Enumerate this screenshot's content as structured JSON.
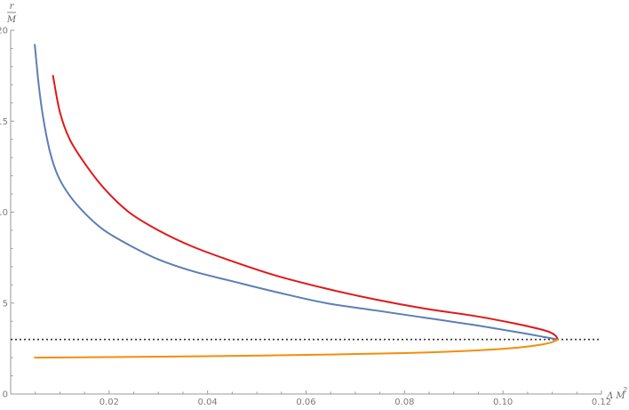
{
  "chart_data": {
    "type": "line",
    "title": "",
    "xlabel": "Λ M",
    "xlabel_superscript": "2",
    "ylabel_numerator": "r",
    "ylabel_denominator": "M",
    "xlim": [
      0,
      0.12
    ],
    "ylim": [
      0,
      20
    ],
    "x_ticks": [
      0.02,
      0.04,
      0.06,
      0.08,
      0.1,
      0.12
    ],
    "x_tick_labels": [
      "0.02",
      "0.04",
      "0.06",
      "0.08",
      "0.10",
      "0.12"
    ],
    "y_ticks": [
      0,
      5,
      10,
      15,
      20
    ],
    "y_tick_labels": [
      "0",
      "5",
      "10",
      "15",
      "20"
    ],
    "reference_line": {
      "y": 3,
      "style": "dotted",
      "color": "#333333"
    },
    "series": [
      {
        "name": "blue",
        "color": "#5b7fb5",
        "x": [
          0.0049,
          0.0057,
          0.0066,
          0.008,
          0.0096,
          0.012,
          0.0152,
          0.019,
          0.024,
          0.03,
          0.037,
          0.045,
          0.054,
          0.064,
          0.074,
          0.084,
          0.094,
          0.104,
          0.108,
          0.1111
        ],
        "y": [
          19.2,
          17.0,
          15.2,
          13.3,
          12.0,
          10.9,
          9.9,
          9.0,
          8.2,
          7.4,
          6.75,
          6.2,
          5.6,
          5.0,
          4.6,
          4.2,
          3.8,
          3.35,
          3.15,
          3.0
        ]
      },
      {
        "name": "red",
        "color": "#e01818",
        "x": [
          0.0086,
          0.01,
          0.012,
          0.015,
          0.019,
          0.024,
          0.03,
          0.037,
          0.045,
          0.054,
          0.064,
          0.074,
          0.084,
          0.094,
          0.102,
          0.107,
          0.1095,
          0.1107,
          0.1111
        ],
        "y": [
          17.5,
          15.5,
          14.0,
          12.7,
          11.3,
          10.0,
          9.0,
          8.1,
          7.3,
          6.5,
          5.8,
          5.2,
          4.7,
          4.3,
          3.9,
          3.6,
          3.4,
          3.2,
          3.0
        ]
      },
      {
        "name": "orange",
        "color": "#f28e0c",
        "x": [
          0.0049,
          0.02,
          0.04,
          0.06,
          0.08,
          0.095,
          0.103,
          0.1075,
          0.11,
          0.1111
        ],
        "y": [
          2.0,
          2.03,
          2.08,
          2.15,
          2.25,
          2.4,
          2.55,
          2.7,
          2.85,
          3.0
        ]
      }
    ]
  }
}
